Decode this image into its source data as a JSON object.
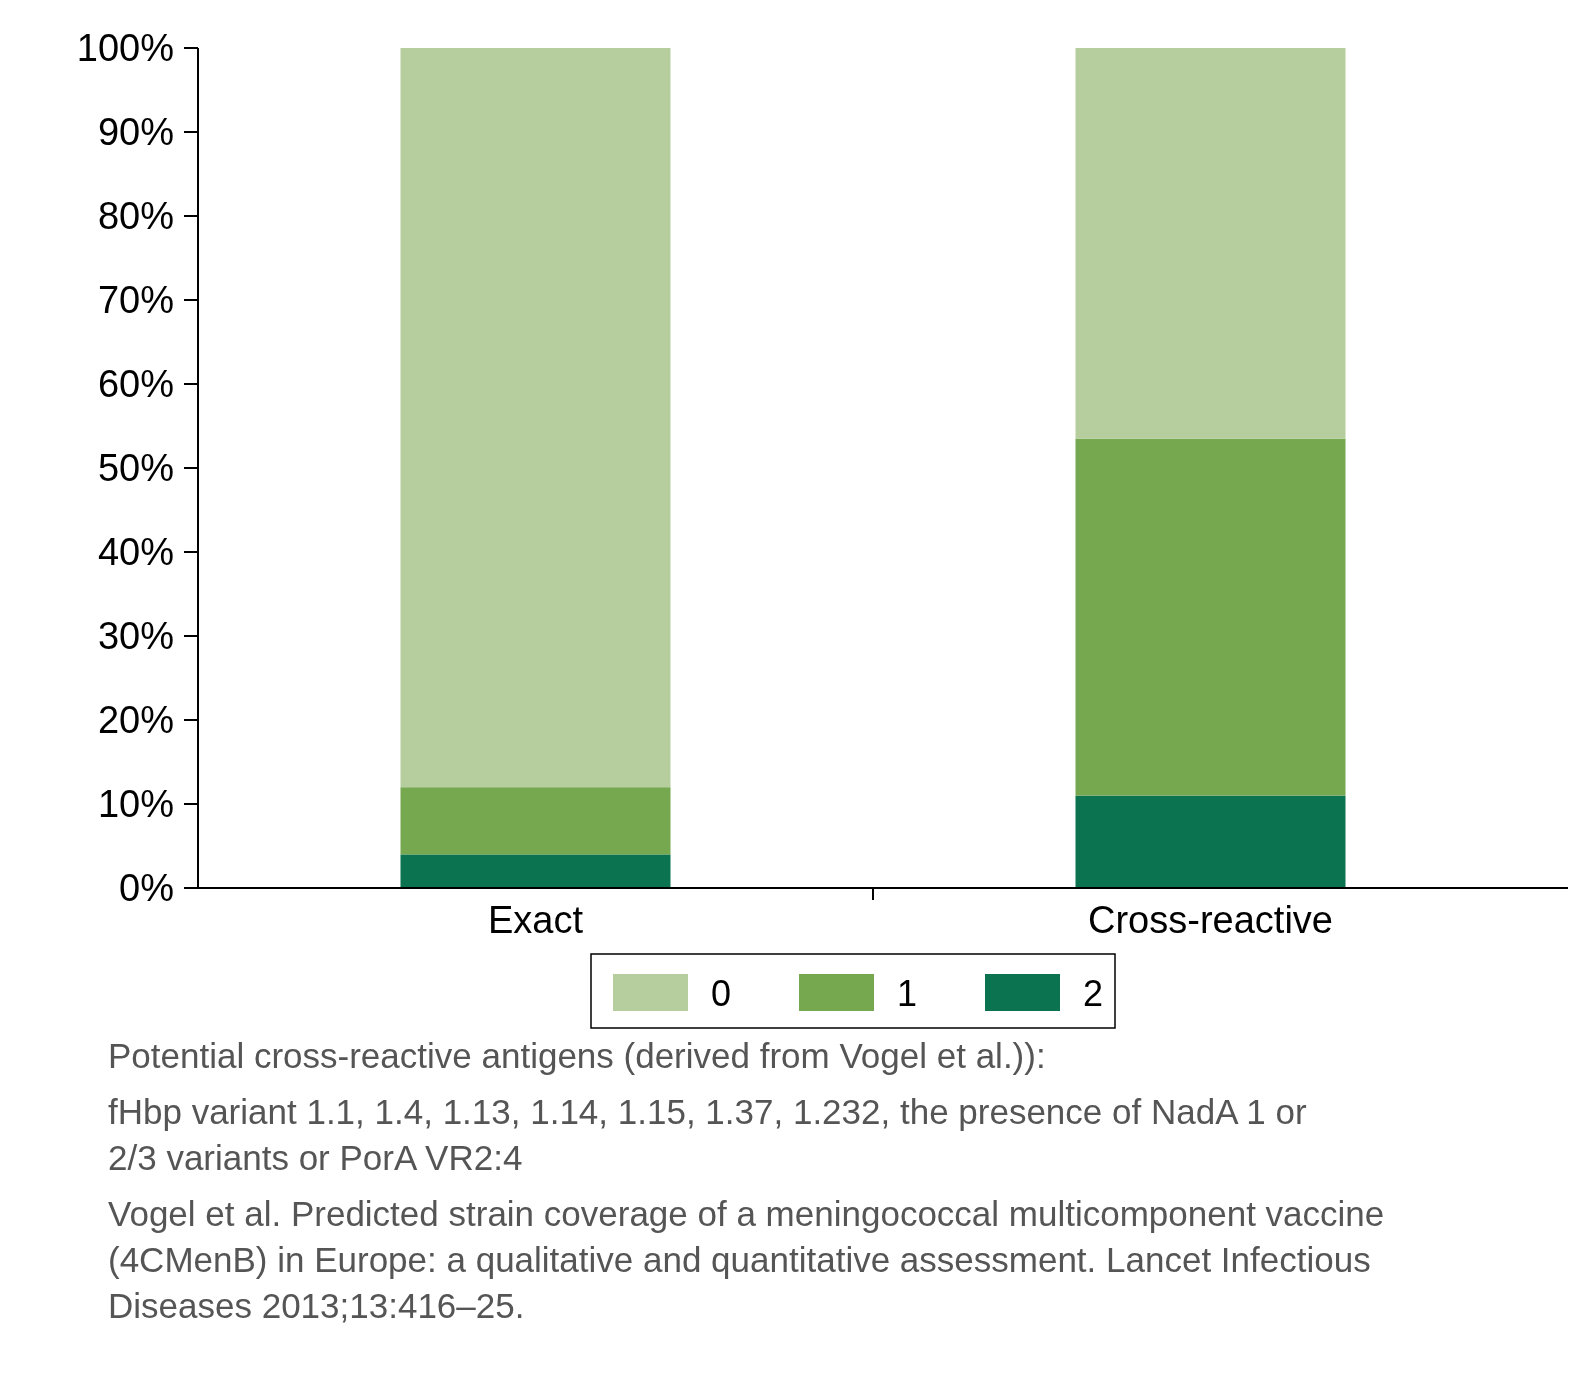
{
  "chart_data": {
    "type": "bar",
    "stacked": true,
    "categories": [
      "Exact",
      "Cross-reactive"
    ],
    "series": [
      {
        "name": "2",
        "color": "#0b7350",
        "values": [
          4,
          11
        ]
      },
      {
        "name": "1",
        "color": "#75a84f",
        "values": [
          8,
          42.5
        ]
      },
      {
        "name": "0",
        "color": "#b6cd9e",
        "values": [
          88,
          46.5
        ]
      }
    ],
    "ylim": [
      0,
      100
    ],
    "yticks": [
      {
        "value": 0,
        "label": "0%"
      },
      {
        "value": 10,
        "label": "10%"
      },
      {
        "value": 20,
        "label": "20%"
      },
      {
        "value": 30,
        "label": "30%"
      },
      {
        "value": 40,
        "label": "40%"
      },
      {
        "value": 50,
        "label": "50%"
      },
      {
        "value": 60,
        "label": "60%"
      },
      {
        "value": 70,
        "label": "70%"
      },
      {
        "value": 80,
        "label": "80%"
      },
      {
        "value": 90,
        "label": "90%"
      },
      {
        "value": 100,
        "label": "100%"
      }
    ],
    "legend": "bottom",
    "grid": false,
    "annotations": [
      "Potential cross-reactive antigens (derived from Vogel et al.)):",
      "fHbp variant 1.1, 1.4, 1.13, 1.14, 1.15, 1.37, 1.232, the presence of NadA 1 or 2/3 variants or PorA VR2:4",
      "Vogel et al. Predicted strain coverage of a meningococcal multicomponent vaccine (4CMenB) in Europe: a qualitative and quantitative assessment. Lancet Infectious Diseases 2013;13:416–25."
    ]
  }
}
